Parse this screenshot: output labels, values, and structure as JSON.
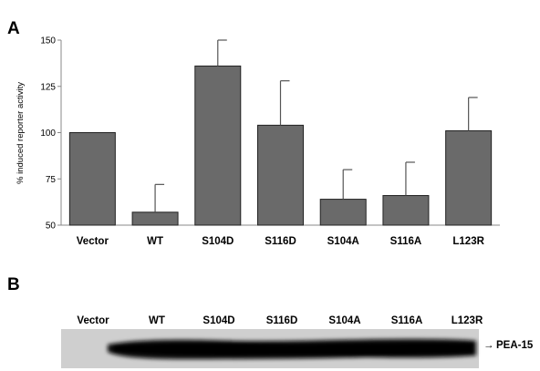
{
  "panels": {
    "a": "A",
    "b": "B"
  },
  "chart_data": {
    "type": "bar",
    "ylabel": "% induced reporter activity",
    "ylim": [
      50,
      150
    ],
    "yticks": [
      50,
      75,
      100,
      125,
      150
    ],
    "grid": false,
    "categories": [
      "Vector",
      "WT",
      "S104D",
      "S116D",
      "S104A",
      "S116A",
      "L123R"
    ],
    "values": [
      100,
      57,
      136,
      104,
      64,
      66,
      101
    ],
    "errors": [
      0,
      15,
      14,
      24,
      16,
      18,
      18
    ],
    "bar_color": "#6a6a6a"
  },
  "blot": {
    "lanes": [
      "Vector",
      "WT",
      "S104D",
      "S116D",
      "S104A",
      "S116A",
      "L123R"
    ],
    "band_label": "PEA-15",
    "arrow": "→"
  }
}
